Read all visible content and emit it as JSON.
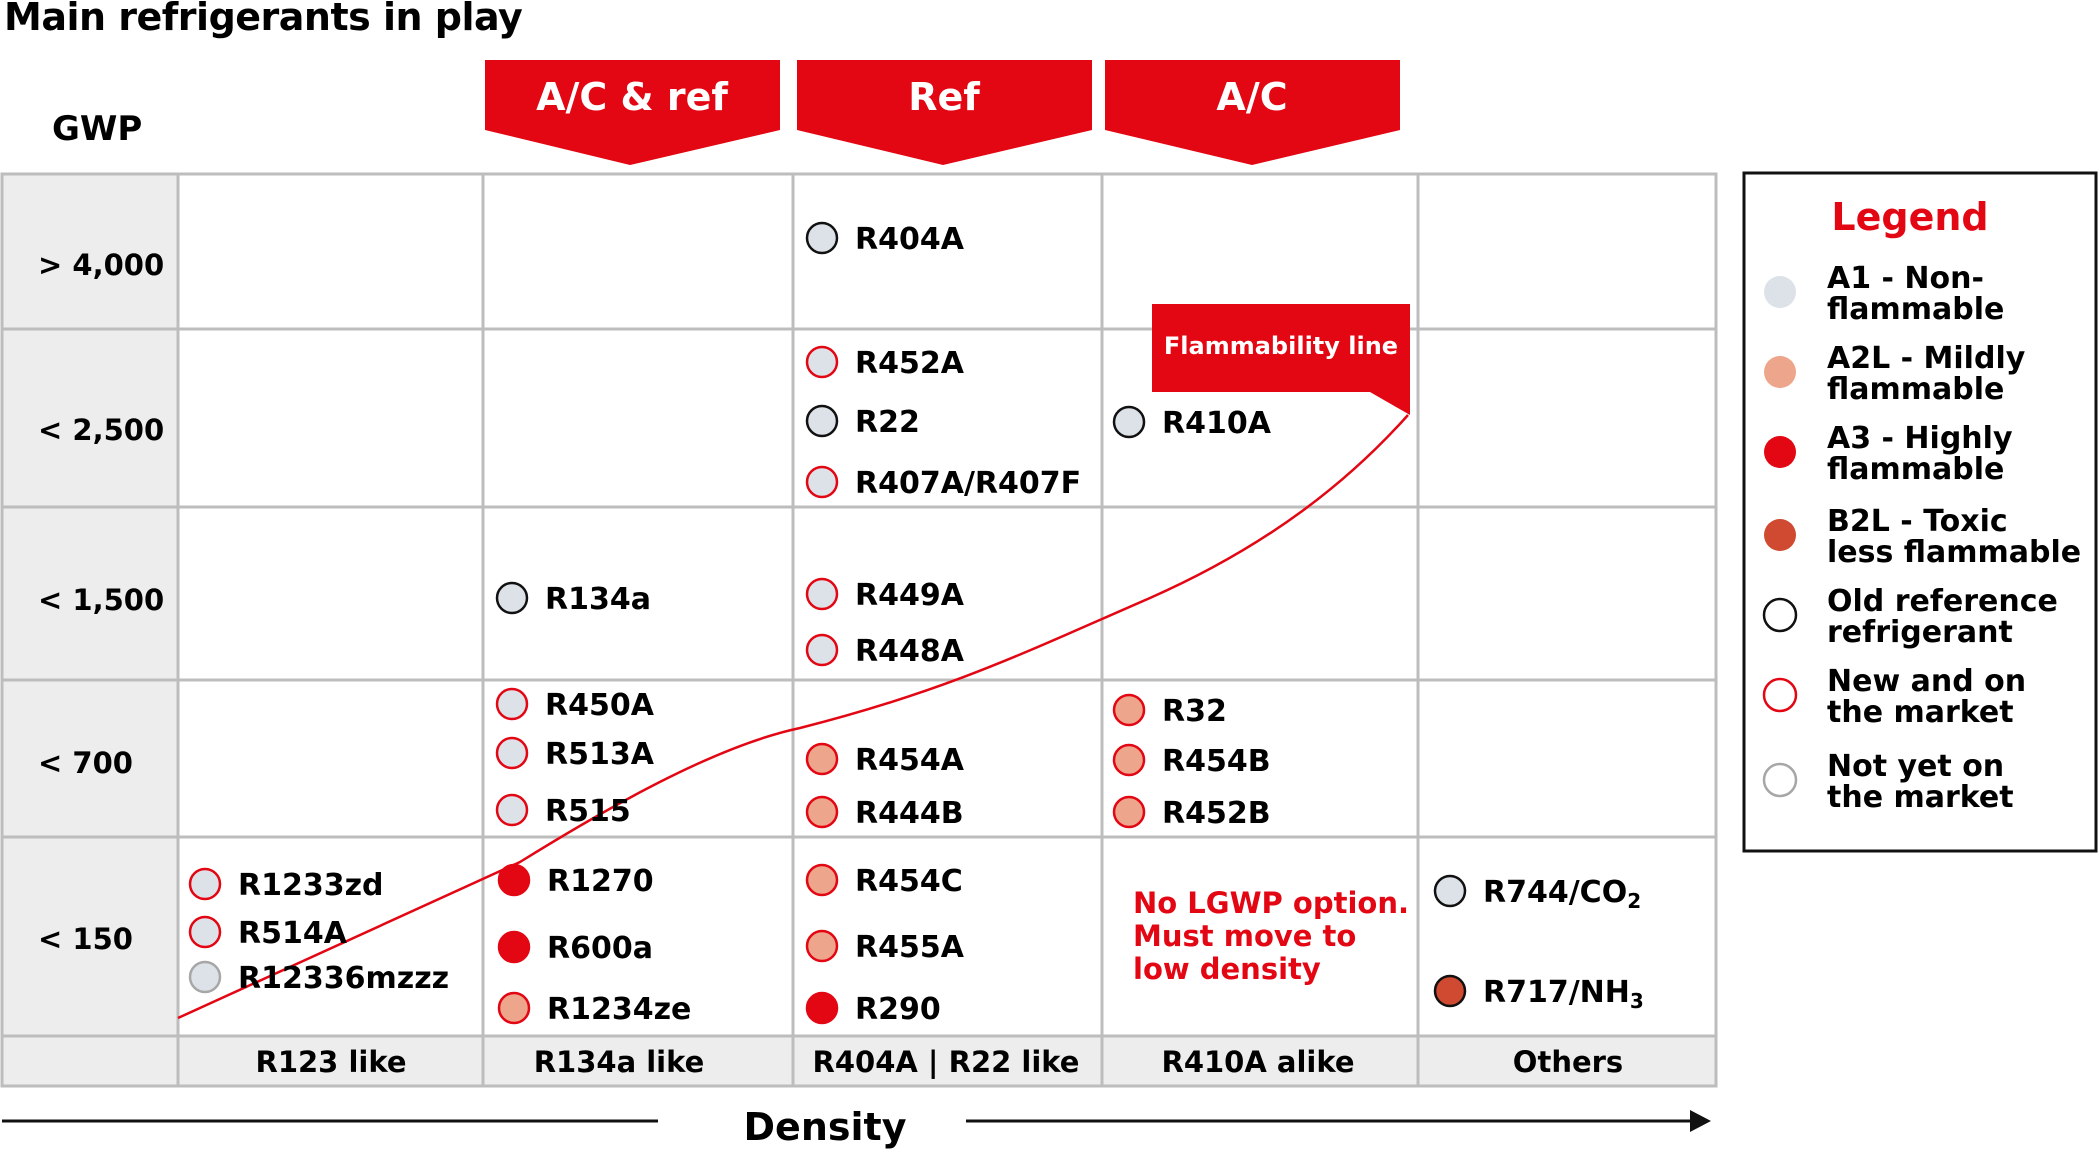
{
  "title": "Main refrigerants in play",
  "y_axis_label": "GWP",
  "x_axis_label": "Density",
  "category_headers": [
    {
      "label": "A/C & ref"
    },
    {
      "label": "Ref"
    },
    {
      "label": "A/C"
    }
  ],
  "gwp_rows": [
    "> 4,000",
    "< 2,500",
    "< 1,500",
    "< 700",
    "< 150"
  ],
  "density_columns": [
    "R123 like",
    "R134a like",
    "R404A | R22 like",
    "R410A alike",
    "Others"
  ],
  "flammability_line_label": "Flammability line",
  "no_lgwp_note": [
    "No LGWP option.",
    "Must move to",
    "low density"
  ],
  "refrigerants": [
    {
      "name": "R404A",
      "row": 0,
      "col": 2,
      "safety": "A1",
      "status": "old"
    },
    {
      "name": "R452A",
      "row": 1,
      "col": 2,
      "safety": "A1",
      "status": "new"
    },
    {
      "name": "R22",
      "row": 1,
      "col": 2,
      "safety": "A1",
      "status": "old"
    },
    {
      "name": "R407A/R407F",
      "row": 1,
      "col": 2,
      "safety": "A1",
      "status": "new"
    },
    {
      "name": "R410A",
      "row": 1,
      "col": 3,
      "safety": "A1",
      "status": "old"
    },
    {
      "name": "R134a",
      "row": 2,
      "col": 1,
      "safety": "A1",
      "status": "old"
    },
    {
      "name": "R449A",
      "row": 2,
      "col": 2,
      "safety": "A1",
      "status": "new"
    },
    {
      "name": "R448A",
      "row": 2,
      "col": 2,
      "safety": "A1",
      "status": "new"
    },
    {
      "name": "R450A",
      "row": 3,
      "col": 1,
      "safety": "A1",
      "status": "new"
    },
    {
      "name": "R513A",
      "row": 3,
      "col": 1,
      "safety": "A1",
      "status": "new"
    },
    {
      "name": "R515",
      "row": 3,
      "col": 1,
      "safety": "A1",
      "status": "new"
    },
    {
      "name": "R454A",
      "row": 3,
      "col": 2,
      "safety": "A2L",
      "status": "new"
    },
    {
      "name": "R444B",
      "row": 3,
      "col": 2,
      "safety": "A2L",
      "status": "new"
    },
    {
      "name": "R32",
      "row": 3,
      "col": 3,
      "safety": "A2L",
      "status": "new"
    },
    {
      "name": "R454B",
      "row": 3,
      "col": 3,
      "safety": "A2L",
      "status": "new"
    },
    {
      "name": "R452B",
      "row": 3,
      "col": 3,
      "safety": "A2L",
      "status": "new"
    },
    {
      "name": "R1233zd",
      "row": 4,
      "col": 0,
      "safety": "A1",
      "status": "new"
    },
    {
      "name": "R514A",
      "row": 4,
      "col": 0,
      "safety": "A1",
      "status": "new"
    },
    {
      "name": "R12336mzzz",
      "row": 4,
      "col": 0,
      "safety": "A1",
      "status": "not_yet"
    },
    {
      "name": "R1270",
      "row": 4,
      "col": 1,
      "safety": "A3",
      "status": "new"
    },
    {
      "name": "R600a",
      "row": 4,
      "col": 1,
      "safety": "A3",
      "status": "new"
    },
    {
      "name": "R1234ze",
      "row": 4,
      "col": 1,
      "safety": "A2L",
      "status": "new"
    },
    {
      "name": "R454C",
      "row": 4,
      "col": 2,
      "safety": "A2L",
      "status": "new"
    },
    {
      "name": "R455A",
      "row": 4,
      "col": 2,
      "safety": "A2L",
      "status": "new"
    },
    {
      "name": "R290",
      "row": 4,
      "col": 2,
      "safety": "A3",
      "status": "new"
    },
    {
      "name": "R744/CO",
      "subscript": "2",
      "row": 4,
      "col": 4,
      "safety": "A1",
      "status": "old"
    },
    {
      "name": "R717/NH",
      "subscript": "3",
      "row": 4,
      "col": 4,
      "safety": "B2L",
      "status": "old"
    }
  ],
  "legend": {
    "title": "Legend",
    "items": [
      {
        "kind": "fill",
        "key": "A1",
        "lines": [
          "A1 - Non-",
          " flammable"
        ]
      },
      {
        "kind": "fill",
        "key": "A2L",
        "lines": [
          "A2L - Mildly",
          "flammable"
        ]
      },
      {
        "kind": "fill",
        "key": "A3",
        "lines": [
          "A3 - Highly",
          "flammable"
        ]
      },
      {
        "kind": "fill",
        "key": "B2L",
        "lines": [
          "B2L - Toxic",
          "less flammable"
        ]
      },
      {
        "kind": "stroke",
        "key": "old",
        "lines": [
          "Old reference",
          "refrigerant"
        ]
      },
      {
        "kind": "stroke",
        "key": "new",
        "lines": [
          "New and on",
          "the market"
        ]
      },
      {
        "kind": "stroke",
        "key": "not_yet",
        "lines": [
          "Not yet on",
          "the market"
        ]
      }
    ]
  },
  "colors": {
    "brand_red": "#e30613",
    "A1": "#dde2e8",
    "A2L": "#eda58b",
    "A3": "#e30613",
    "B2L": "#cf4a30",
    "old": "#111111",
    "new": "#e30613",
    "not_yet": "#a7a7a7",
    "header_gray": "#ededed",
    "grid": "#bdbdbd"
  }
}
